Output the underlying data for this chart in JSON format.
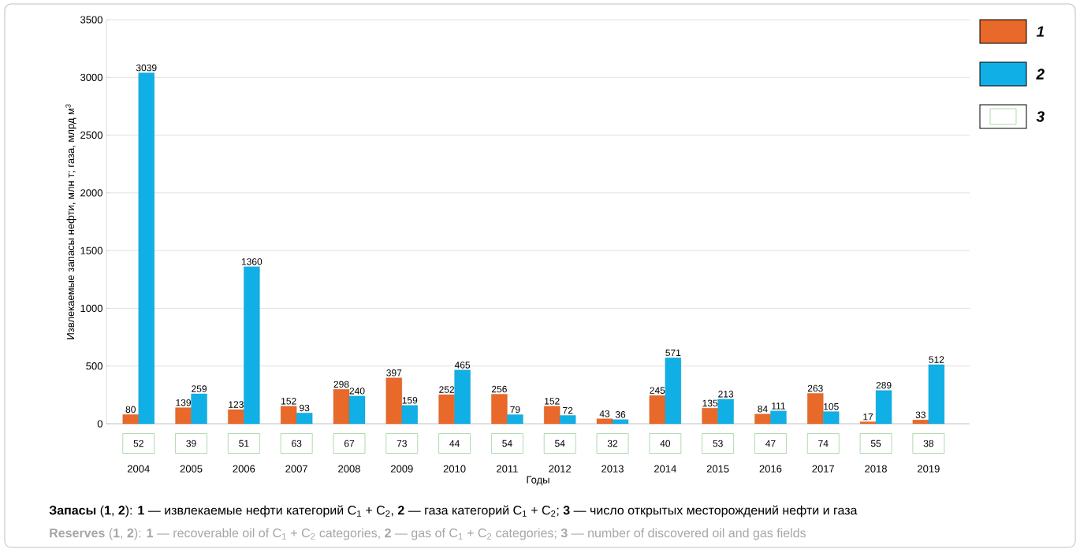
{
  "chart_data": [
    {
      "type": "bar",
      "xlabel": "Годы",
      "ylabel": "Извлекаемые запасы нефти, млн т; газа, млрд м$^{3}$",
      "categories": [
        "2004",
        "2005",
        "2006",
        "2007",
        "2008",
        "2009",
        "2010",
        "2011",
        "2012",
        "2013",
        "2014",
        "2015",
        "2016",
        "2017",
        "2018",
        "2019"
      ],
      "series": [
        {
          "name": "1",
          "color": "#e8692a",
          "values": [
            80,
            139,
            123,
            152,
            298,
            397,
            252,
            256,
            152,
            43,
            245,
            135,
            84,
            263,
            17,
            33
          ]
        },
        {
          "name": "2",
          "color": "#10b0e6",
          "values": [
            3039,
            259,
            1360,
            93,
            240,
            159,
            465,
            79,
            72,
            36,
            571,
            213,
            111,
            105,
            289,
            512
          ]
        }
      ],
      "ylim": [
        0,
        3500
      ],
      "yticks": [
        0,
        500,
        1000,
        1500,
        2000,
        2500,
        3000,
        3500
      ],
      "grid": "y",
      "legend": "top right",
      "data_labels": true,
      "annotations": [
        "**Запасы** (**1**, **2**): **1** — извлекаемые нефти категорий C$_{1}$ + C$_{2}$, **2** — газа категорий C$_{1}$ + C$_{2}$; **3** — число открытых месторождений нефти и газа",
        "**Reserves** (**1**, **2**): **1** — recoverable oil of C$_{1}$ + C$_{2}$ categories, **2** — gas of C$_{1}$ + C$_{2}$ categories; **3** — number of discovered oil and gas fields"
      ]
    },
    {
      "type": "other",
      "legend": "top right",
      "data_labels": true,
      "series": [
        {
          "name": "3",
          "color": "#3aa335",
          "values": [
            52,
            39,
            51,
            63,
            67,
            73,
            44,
            54,
            54,
            32,
            40,
            53,
            47,
            74,
            55,
            38
          ]
        }
      ]
    }
  ]
}
